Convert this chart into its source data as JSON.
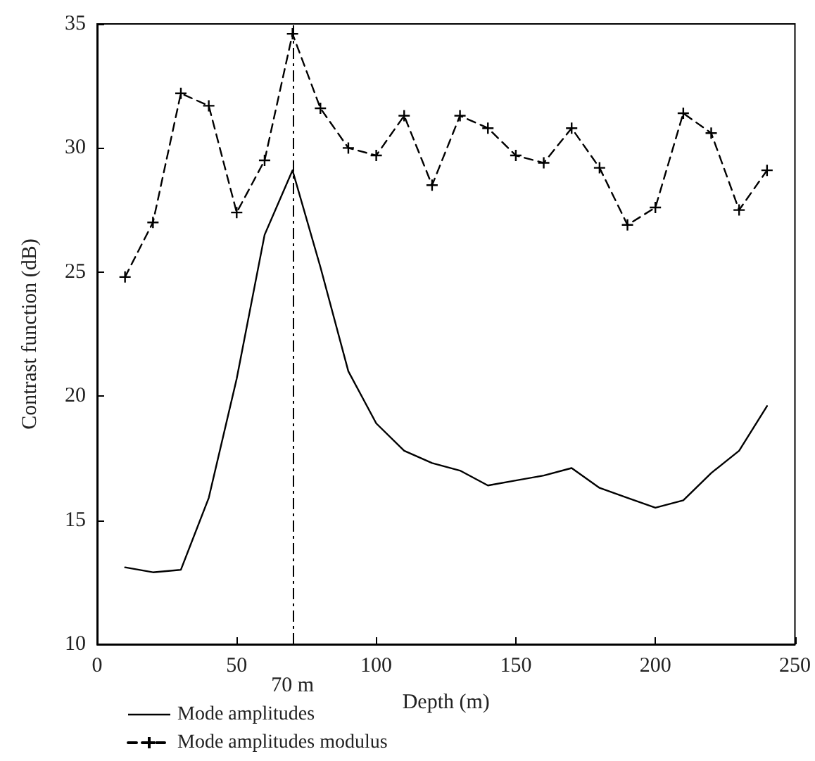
{
  "chart_data": {
    "type": "line",
    "xlabel": "Depth (m)",
    "ylabel": "Contrast function (dB)",
    "x": [
      10,
      20,
      30,
      40,
      50,
      60,
      70,
      80,
      90,
      100,
      110,
      120,
      130,
      140,
      150,
      160,
      170,
      180,
      190,
      200,
      210,
      220,
      230,
      240
    ],
    "series": [
      {
        "name": "Mode amplitudes",
        "color": "#000000",
        "marker": "none",
        "line_style": "solid",
        "values": [
          13.1,
          12.9,
          13.0,
          15.9,
          20.7,
          26.5,
          29.1,
          25.2,
          21.0,
          18.9,
          17.8,
          17.3,
          17.0,
          16.4,
          16.6,
          16.8,
          17.1,
          16.3,
          15.9,
          15.5,
          15.8,
          16.9,
          17.8,
          19.6
        ]
      },
      {
        "name": "Mode amplitudes modulus",
        "color": "#000000",
        "marker": "cross",
        "line_style": "dashed",
        "values": [
          24.8,
          27.0,
          32.2,
          31.7,
          27.4,
          29.5,
          34.6,
          31.6,
          30.0,
          29.7,
          31.3,
          28.5,
          31.3,
          30.8,
          29.7,
          29.4,
          30.8,
          29.2,
          26.9,
          27.6,
          31.4,
          30.6,
          27.5,
          29.1
        ]
      }
    ],
    "xlim": [
      0,
      250
    ],
    "xticks": [
      0,
      50,
      100,
      150,
      200,
      250
    ],
    "ylim": [
      10,
      35
    ],
    "yticks": [
      10,
      15,
      20,
      25,
      30,
      35
    ],
    "ref_lines": [
      {
        "axis": "x",
        "value": 70,
        "label": "70 m",
        "line_style": "dashdot",
        "color": "#000000"
      }
    ],
    "grid": false,
    "legend": "bottom left"
  }
}
